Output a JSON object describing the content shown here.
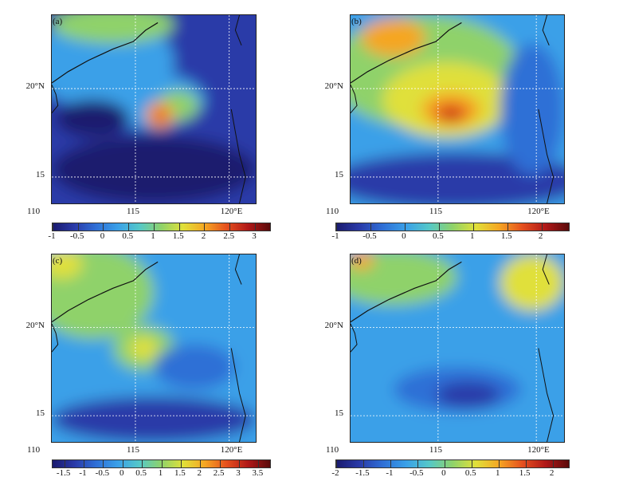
{
  "panels": [
    {
      "label": "(a)",
      "lat_labels": [
        "20°N",
        "15"
      ],
      "lon_labels": [
        "110",
        "115",
        "120°E"
      ],
      "colorbar_ticks": [
        "-1",
        "-0.5",
        "0",
        "0.5",
        "1",
        "1.5",
        "2",
        "2.5",
        "3"
      ],
      "colorbar_range": [
        -1,
        3.3
      ]
    },
    {
      "label": "(b)",
      "lat_labels": [
        "20°N",
        "15"
      ],
      "lon_labels": [
        "110",
        "115",
        "120°E"
      ],
      "colorbar_ticks": [
        "-1",
        "-0.5",
        "0",
        "0.5",
        "1",
        "1.5",
        "2"
      ],
      "colorbar_range": [
        -1,
        2.4
      ]
    },
    {
      "label": "(c)",
      "lat_labels": [
        "20°N",
        "15"
      ],
      "lon_labels": [
        "110",
        "115",
        "120°E"
      ],
      "colorbar_ticks": [
        "-1.5",
        "-1",
        "-0.5",
        "0",
        "0.5",
        "1",
        "1.5",
        "2",
        "2.5",
        "3",
        "3.5"
      ],
      "colorbar_range": [
        -1.8,
        3.8
      ]
    },
    {
      "label": "(d)",
      "lat_labels": [
        "20°N",
        "15"
      ],
      "lon_labels": [
        "110",
        "115",
        "120°E"
      ],
      "colorbar_ticks": [
        "-2",
        "-1.5",
        "-1",
        "-0.5",
        "0",
        "0.5",
        "1",
        "1.5",
        "2"
      ],
      "colorbar_range": [
        -2,
        2.3
      ]
    }
  ],
  "colors": {
    "scale": [
      "#1a1a6e",
      "#2a3aa8",
      "#2f6fd6",
      "#3aa0e8",
      "#55c8c8",
      "#8fd26a",
      "#e0e03a",
      "#f5a623",
      "#e5501e",
      "#b01818",
      "#5a0a0a"
    ]
  }
}
